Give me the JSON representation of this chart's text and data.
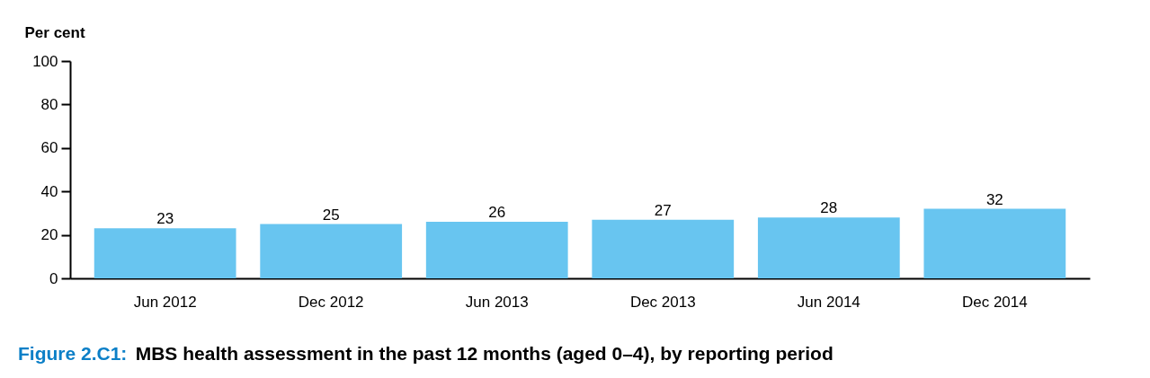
{
  "chart_data": {
    "type": "bar",
    "ylabel": "Per cent",
    "categories": [
      "Jun 2012",
      "Dec 2012",
      "Jun 2013",
      "Dec 2013",
      "Jun 2014",
      "Dec 2014"
    ],
    "values": [
      23,
      25,
      26,
      27,
      28,
      32
    ],
    "color": "#68c5f0",
    "ylim": [
      0,
      100
    ],
    "yticks": [
      0,
      20,
      40,
      60,
      80,
      100
    ],
    "data_labels": true,
    "annotations": [
      "Figure 2.C1:",
      "MBS health assessment in the past 12 months (aged 0–4), by reporting period"
    ]
  }
}
